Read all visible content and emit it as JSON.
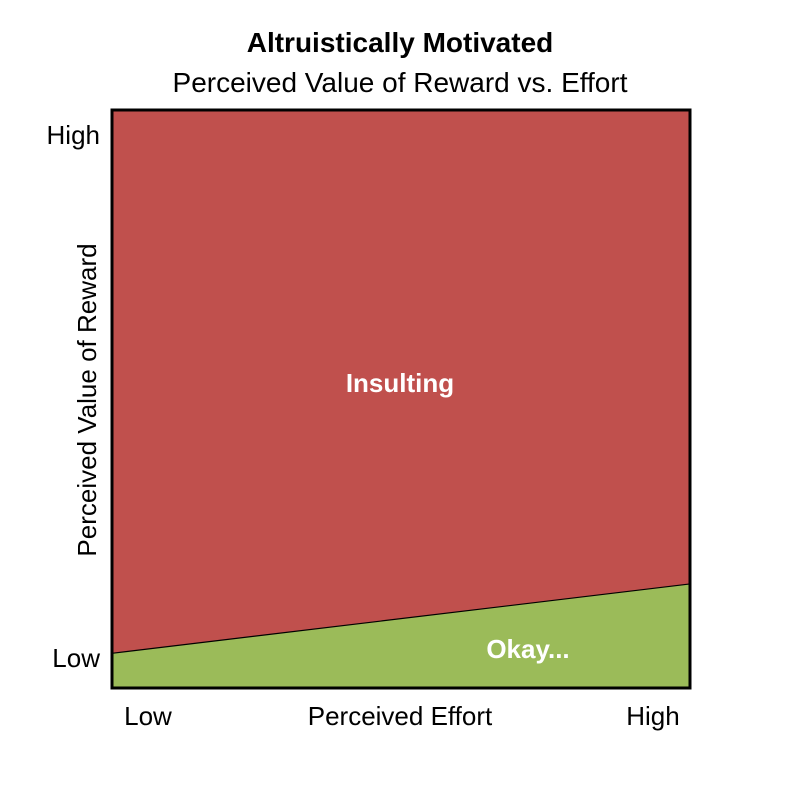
{
  "chart_data": {
    "type": "area",
    "title": "Altruistically Motivated",
    "subtitle": "Perceived Value of Reward vs. Effort",
    "xlabel": "Perceived Effort",
    "ylabel": "Perceived Value of Reward",
    "x_ticks": [
      "Low",
      "High"
    ],
    "y_ticks": [
      "Low",
      "High"
    ],
    "xlim": [
      0,
      1
    ],
    "ylim": [
      0,
      1
    ],
    "boundary": {
      "x": [
        0,
        1
      ],
      "y": [
        0.06,
        0.18
      ]
    },
    "regions": [
      {
        "name": "Insulting",
        "position": "above-boundary",
        "color": "#c0504d"
      },
      {
        "name": "Okay...",
        "position": "below-boundary",
        "color": "#9bbb59"
      }
    ],
    "grid": false,
    "legend": "none"
  },
  "colors": {
    "axis": "#000000",
    "label_text": "#ffffff"
  }
}
